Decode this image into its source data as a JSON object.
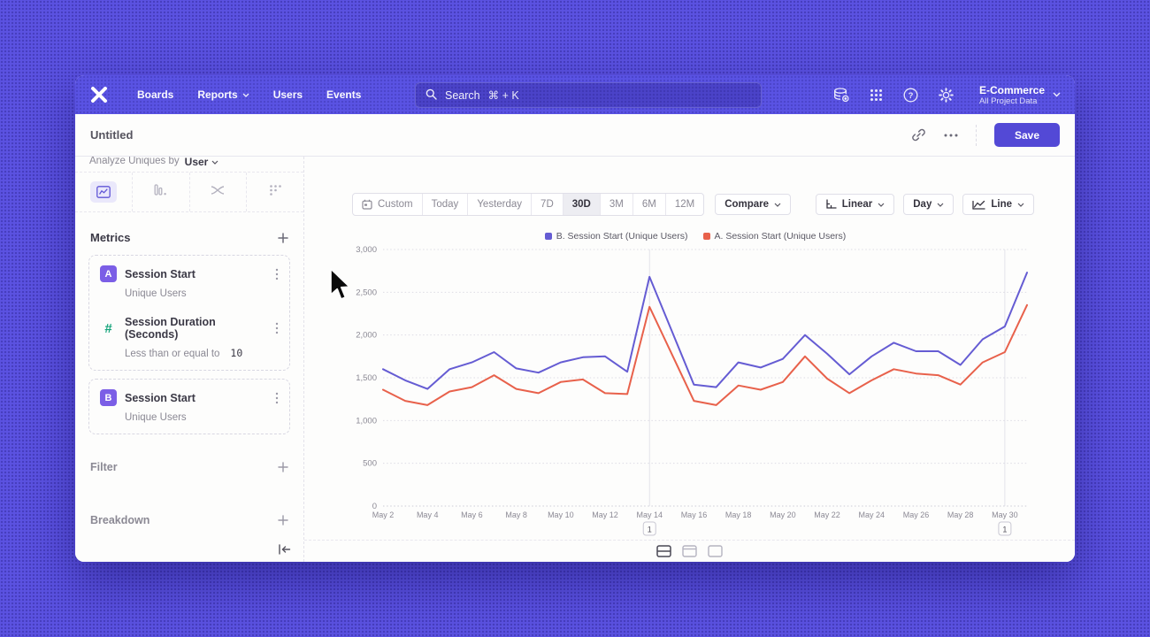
{
  "nav": {
    "items": [
      {
        "label": "Boards"
      },
      {
        "label": "Reports"
      },
      {
        "label": "Users"
      },
      {
        "label": "Events"
      }
    ],
    "search_label": "Search",
    "search_shortcut": "⌘ + K",
    "project_name": "E-Commerce",
    "project_subtitle": "All Project Data"
  },
  "header": {
    "title": "Untitled",
    "save_label": "Save"
  },
  "sidebar": {
    "analyze_prefix": "Analyze Uniques by",
    "analyze_value": "User",
    "metrics_title": "Metrics",
    "metric_groups": [
      {
        "rows": [
          {
            "badge": "A",
            "title": "Session Start",
            "subtitle": "Unique Users",
            "subtitle_value": ""
          },
          {
            "badge": "#",
            "title": "Session Duration (Seconds)",
            "subtitle": "Less than or equal to",
            "subtitle_value": "10"
          }
        ]
      },
      {
        "rows": [
          {
            "badge": "B",
            "title": "Session Start",
            "subtitle": "Unique Users",
            "subtitle_value": ""
          }
        ]
      }
    ],
    "filter_label": "Filter",
    "breakdown_label": "Breakdown"
  },
  "controls": {
    "ranges": [
      "Custom",
      "Today",
      "Yesterday",
      "7D",
      "30D",
      "3M",
      "6M",
      "12M"
    ],
    "selected_range": "30D",
    "compare_label": "Compare",
    "scale_label": "Linear",
    "interval_label": "Day",
    "chart_type_label": "Line"
  },
  "chart_data": {
    "type": "line",
    "title": "",
    "x": [
      "May 2",
      "May 3",
      "May 4",
      "May 5",
      "May 6",
      "May 7",
      "May 8",
      "May 9",
      "May 10",
      "May 11",
      "May 12",
      "May 13",
      "May 14",
      "May 15",
      "May 16",
      "May 17",
      "May 18",
      "May 19",
      "May 20",
      "May 21",
      "May 22",
      "May 23",
      "May 24",
      "May 25",
      "May 26",
      "May 27",
      "May 28",
      "May 29",
      "May 30",
      "May 31"
    ],
    "series": [
      {
        "name": "B. Session Start (Unique Users)",
        "color": "#655cd3",
        "values": [
          1600,
          1470,
          1370,
          1600,
          1680,
          1800,
          1610,
          1560,
          1680,
          1740,
          1750,
          1570,
          2680,
          2050,
          1420,
          1390,
          1680,
          1620,
          1720,
          2000,
          1780,
          1540,
          1750,
          1910,
          1810,
          1810,
          1650,
          1950,
          2100,
          2730
        ]
      },
      {
        "name": "A. Session Start (Unique Users)",
        "color": "#e8614b",
        "values": [
          1360,
          1230,
          1180,
          1340,
          1390,
          1530,
          1370,
          1320,
          1450,
          1480,
          1320,
          1310,
          2330,
          1780,
          1230,
          1180,
          1410,
          1360,
          1450,
          1750,
          1490,
          1320,
          1470,
          1600,
          1550,
          1530,
          1420,
          1680,
          1800,
          2350
        ]
      }
    ],
    "ylim": [
      0,
      3000
    ],
    "yticks": [
      0,
      500,
      1000,
      1500,
      2000,
      2500,
      3000
    ],
    "x_tick_step": 2,
    "grid": "dotted-horizontal",
    "legend_position": "top-center",
    "annotations": [
      {
        "x_index": 12,
        "label": "1"
      },
      {
        "x_index": 28,
        "label": "1"
      }
    ]
  }
}
